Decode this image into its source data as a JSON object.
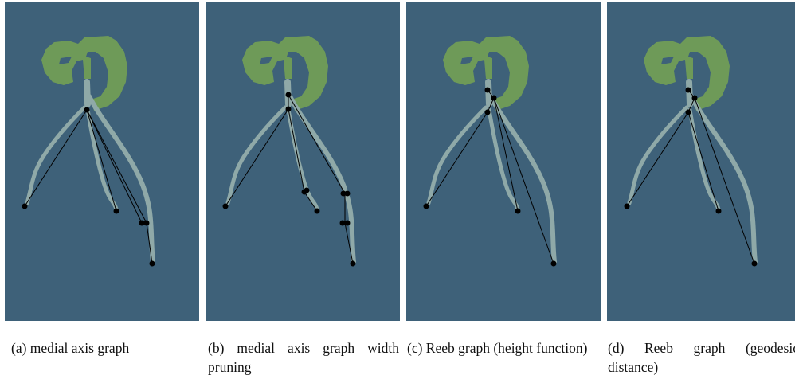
{
  "panels": [
    {
      "caption": "(a) medial axis graph"
    },
    {
      "caption": "(b) medial axis graph width pruning"
    },
    {
      "caption": "(c) Reeb graph (height function)"
    },
    {
      "caption": "(d) Reeb graph (geodesic distance)"
    }
  ]
}
